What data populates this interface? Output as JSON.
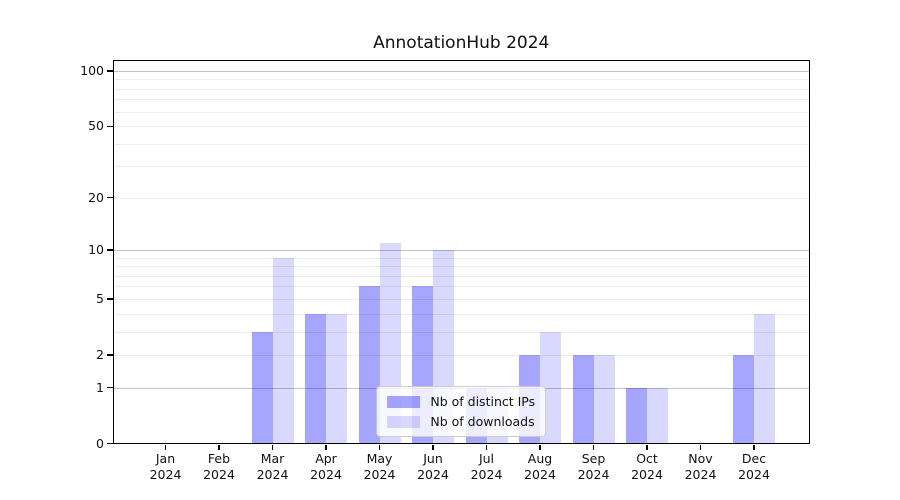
{
  "chart_data": {
    "type": "bar",
    "title": "AnnotationHub 2024",
    "categories": [
      "Jan 2024",
      "Feb 2024",
      "Mar 2024",
      "Apr 2024",
      "May 2024",
      "Jun 2024",
      "Jul 2024",
      "Aug 2024",
      "Sep 2024",
      "Oct 2024",
      "Nov 2024",
      "Dec 2024"
    ],
    "series": [
      {
        "name": "Nb of distinct IPs",
        "color": "rgba(0,0,255,0.35)",
        "values": [
          0,
          0,
          3,
          4,
          6,
          6,
          1,
          2,
          2,
          1,
          0,
          2
        ]
      },
      {
        "name": "Nb of downloads",
        "color": "rgba(0,0,255,0.15)",
        "values": [
          0,
          0,
          9,
          4,
          11,
          10,
          1,
          3,
          2,
          1,
          0,
          4
        ]
      }
    ],
    "xlabel": "",
    "ylabel": "",
    "yscale": "log1p",
    "ylim": [
      0,
      115
    ],
    "yticks": [
      0,
      1,
      2,
      5,
      10,
      20,
      50,
      100
    ],
    "major_gridlines": [
      1,
      10,
      100
    ],
    "minor_gridlines": [
      3,
      4,
      6,
      7,
      8,
      9,
      30,
      40,
      60,
      70,
      80,
      90
    ],
    "grid": "horizontal",
    "legend_position": "lower center"
  },
  "colors": {
    "bar_distinct_ips": "rgba(0,0,255,0.35)",
    "bar_downloads": "rgba(0,0,255,0.15)",
    "major_gridline": "#c4c4c4",
    "minor_gridline": "#ececec",
    "axis_line": "#000000",
    "text": "#111111",
    "legend_border": "#cccccc",
    "legend_background": "rgba(255,255,255,0.8)"
  }
}
